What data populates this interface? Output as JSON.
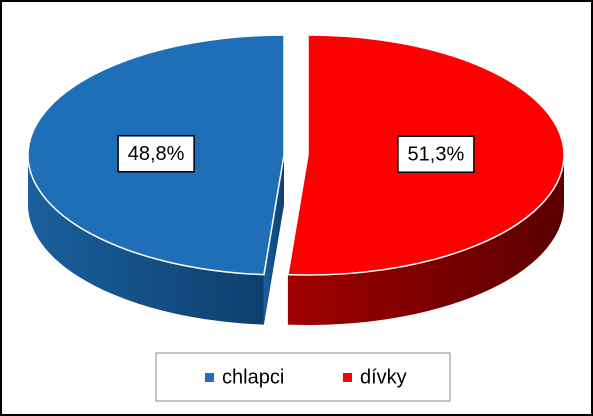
{
  "chart_data": {
    "type": "pie3d",
    "categories": [
      "chlapci",
      "dívky"
    ],
    "values": [
      48.8,
      51.3
    ],
    "value_labels": [
      "48,8%",
      "51,3%"
    ],
    "colors": [
      "#1f6fb8",
      "#ff0000"
    ],
    "legend": "bottom"
  }
}
